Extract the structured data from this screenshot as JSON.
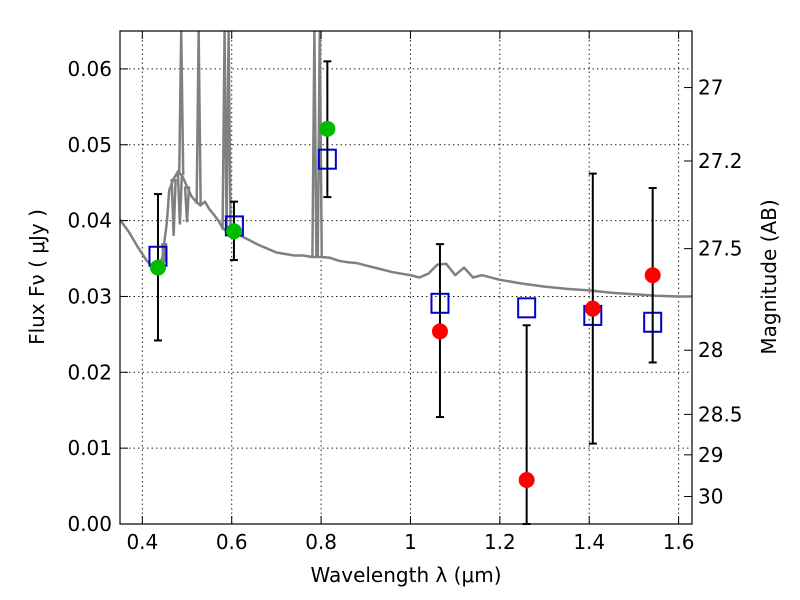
{
  "chart_data": {
    "type": "scatter",
    "xlabel": "Wavelength  λ (μm)",
    "ylabel": "Flux  Fν  ( μJy )",
    "y2label": "Magnitude (AB)",
    "xlim": [
      0.35,
      1.63
    ],
    "ylim": [
      0.0,
      0.065
    ],
    "xticks": [
      0.4,
      0.6,
      0.8,
      1.0,
      1.2,
      1.4,
      1.6
    ],
    "xtick_labels": [
      "0.4",
      "0.6",
      "0.8",
      "1",
      "1.2",
      "1.4",
      "1.6"
    ],
    "yticks": [
      0.0,
      0.01,
      0.02,
      0.03,
      0.04,
      0.05,
      0.06
    ],
    "ytick_labels": [
      "0.00",
      "0.01",
      "0.02",
      "0.03",
      "0.04",
      "0.05",
      "0.06"
    ],
    "y2ticks": [
      {
        "label": "27",
        "mag": 27.0
      },
      {
        "label": "27.2",
        "mag": 27.2
      },
      {
        "label": "27.5",
        "mag": 27.5
      },
      {
        "label": "28",
        "mag": 28.0
      },
      {
        "label": "28.5",
        "mag": 28.5
      },
      {
        "label": "29",
        "mag": 29.0
      },
      {
        "label": "30",
        "mag": 30.0
      }
    ],
    "grid": true,
    "colors": {
      "model": "#808080",
      "detection": "#00bb00",
      "nondetection": "#ff0000",
      "model_photometry": "#0000cc",
      "errorbar": "#000000"
    },
    "model_spectrum": {
      "x": [
        0.35,
        0.37,
        0.39,
        0.41,
        0.425,
        0.435,
        0.445,
        0.455,
        0.46,
        0.47,
        0.48,
        0.49,
        0.5,
        0.51,
        0.52,
        0.53,
        0.54,
        0.55,
        0.56,
        0.57,
        0.58,
        0.59,
        0.6,
        0.62,
        0.64,
        0.66,
        0.68,
        0.7,
        0.72,
        0.74,
        0.76,
        0.78,
        0.8,
        0.82,
        0.84,
        0.86,
        0.88,
        0.9,
        0.92,
        0.94,
        0.96,
        0.98,
        1.0,
        1.02,
        1.04,
        1.06,
        1.08,
        1.1,
        1.12,
        1.14,
        1.16,
        1.2,
        1.25,
        1.3,
        1.35,
        1.4,
        1.45,
        1.5,
        1.55,
        1.6,
        1.63
      ],
      "y": [
        0.0401,
        0.0385,
        0.0365,
        0.0347,
        0.0338,
        0.0336,
        0.0352,
        0.0398,
        0.044,
        0.0455,
        0.0465,
        0.0458,
        0.0445,
        0.0432,
        0.0425,
        0.042,
        0.0425,
        0.0415,
        0.0408,
        0.04,
        0.039,
        0.0385,
        0.0388,
        0.038,
        0.0374,
        0.0368,
        0.0363,
        0.0358,
        0.0356,
        0.0354,
        0.0354,
        0.0352,
        0.0352,
        0.0351,
        0.0347,
        0.0345,
        0.0344,
        0.0341,
        0.0338,
        0.0335,
        0.0332,
        0.033,
        0.0328,
        0.0325,
        0.033,
        0.0342,
        0.0343,
        0.0328,
        0.0338,
        0.0325,
        0.0328,
        0.0322,
        0.0317,
        0.0313,
        0.031,
        0.0308,
        0.0305,
        0.0303,
        0.0301,
        0.03,
        0.03
      ],
      "spikes": [
        {
          "x": 0.437,
          "y": 0.034
        },
        {
          "x": 0.449,
          "y": 0.0345
        },
        {
          "x": 0.47,
          "y": 0.038
        },
        {
          "x": 0.484,
          "y": 0.0395
        },
        {
          "x": 0.487,
          "y": 0.065
        },
        {
          "x": 0.5,
          "y": 0.0398
        },
        {
          "x": 0.526,
          "y": 0.065
        },
        {
          "x": 0.584,
          "y": 0.065
        },
        {
          "x": 0.593,
          "y": 0.065
        },
        {
          "x": 0.785,
          "y": 0.065
        },
        {
          "x": 0.797,
          "y": 0.065
        }
      ]
    },
    "series": [
      {
        "marker": "circle",
        "color": "#00bb00",
        "points": [
          {
            "x": 0.435,
            "y": 0.0338,
            "err_low": 0.0242,
            "err_high": 0.0435
          },
          {
            "x": 0.605,
            "y": 0.0386,
            "err_low": 0.0348,
            "err_high": 0.0425
          },
          {
            "x": 0.814,
            "y": 0.0521,
            "err_low": 0.0431,
            "err_high": 0.061
          }
        ]
      },
      {
        "marker": "circle",
        "color": "#ff0000",
        "points": [
          {
            "x": 1.066,
            "y": 0.0254,
            "err_low": 0.0141,
            "err_high": 0.0369
          },
          {
            "x": 1.26,
            "y": 0.0058,
            "err_low": 0.0,
            "err_high": 0.0262
          },
          {
            "x": 1.408,
            "y": 0.0284,
            "err_low": 0.0106,
            "err_high": 0.0462
          },
          {
            "x": 1.542,
            "y": 0.0328,
            "err_low": 0.0213,
            "err_high": 0.0443
          }
        ]
      },
      {
        "marker": "square",
        "color": "#0000cc",
        "points": [
          {
            "x": 0.435,
            "y": 0.0353
          },
          {
            "x": 0.606,
            "y": 0.0393
          },
          {
            "x": 0.814,
            "y": 0.0481
          },
          {
            "x": 1.066,
            "y": 0.0291
          },
          {
            "x": 1.26,
            "y": 0.0285
          },
          {
            "x": 1.408,
            "y": 0.0275
          },
          {
            "x": 1.542,
            "y": 0.0266
          }
        ]
      }
    ]
  }
}
